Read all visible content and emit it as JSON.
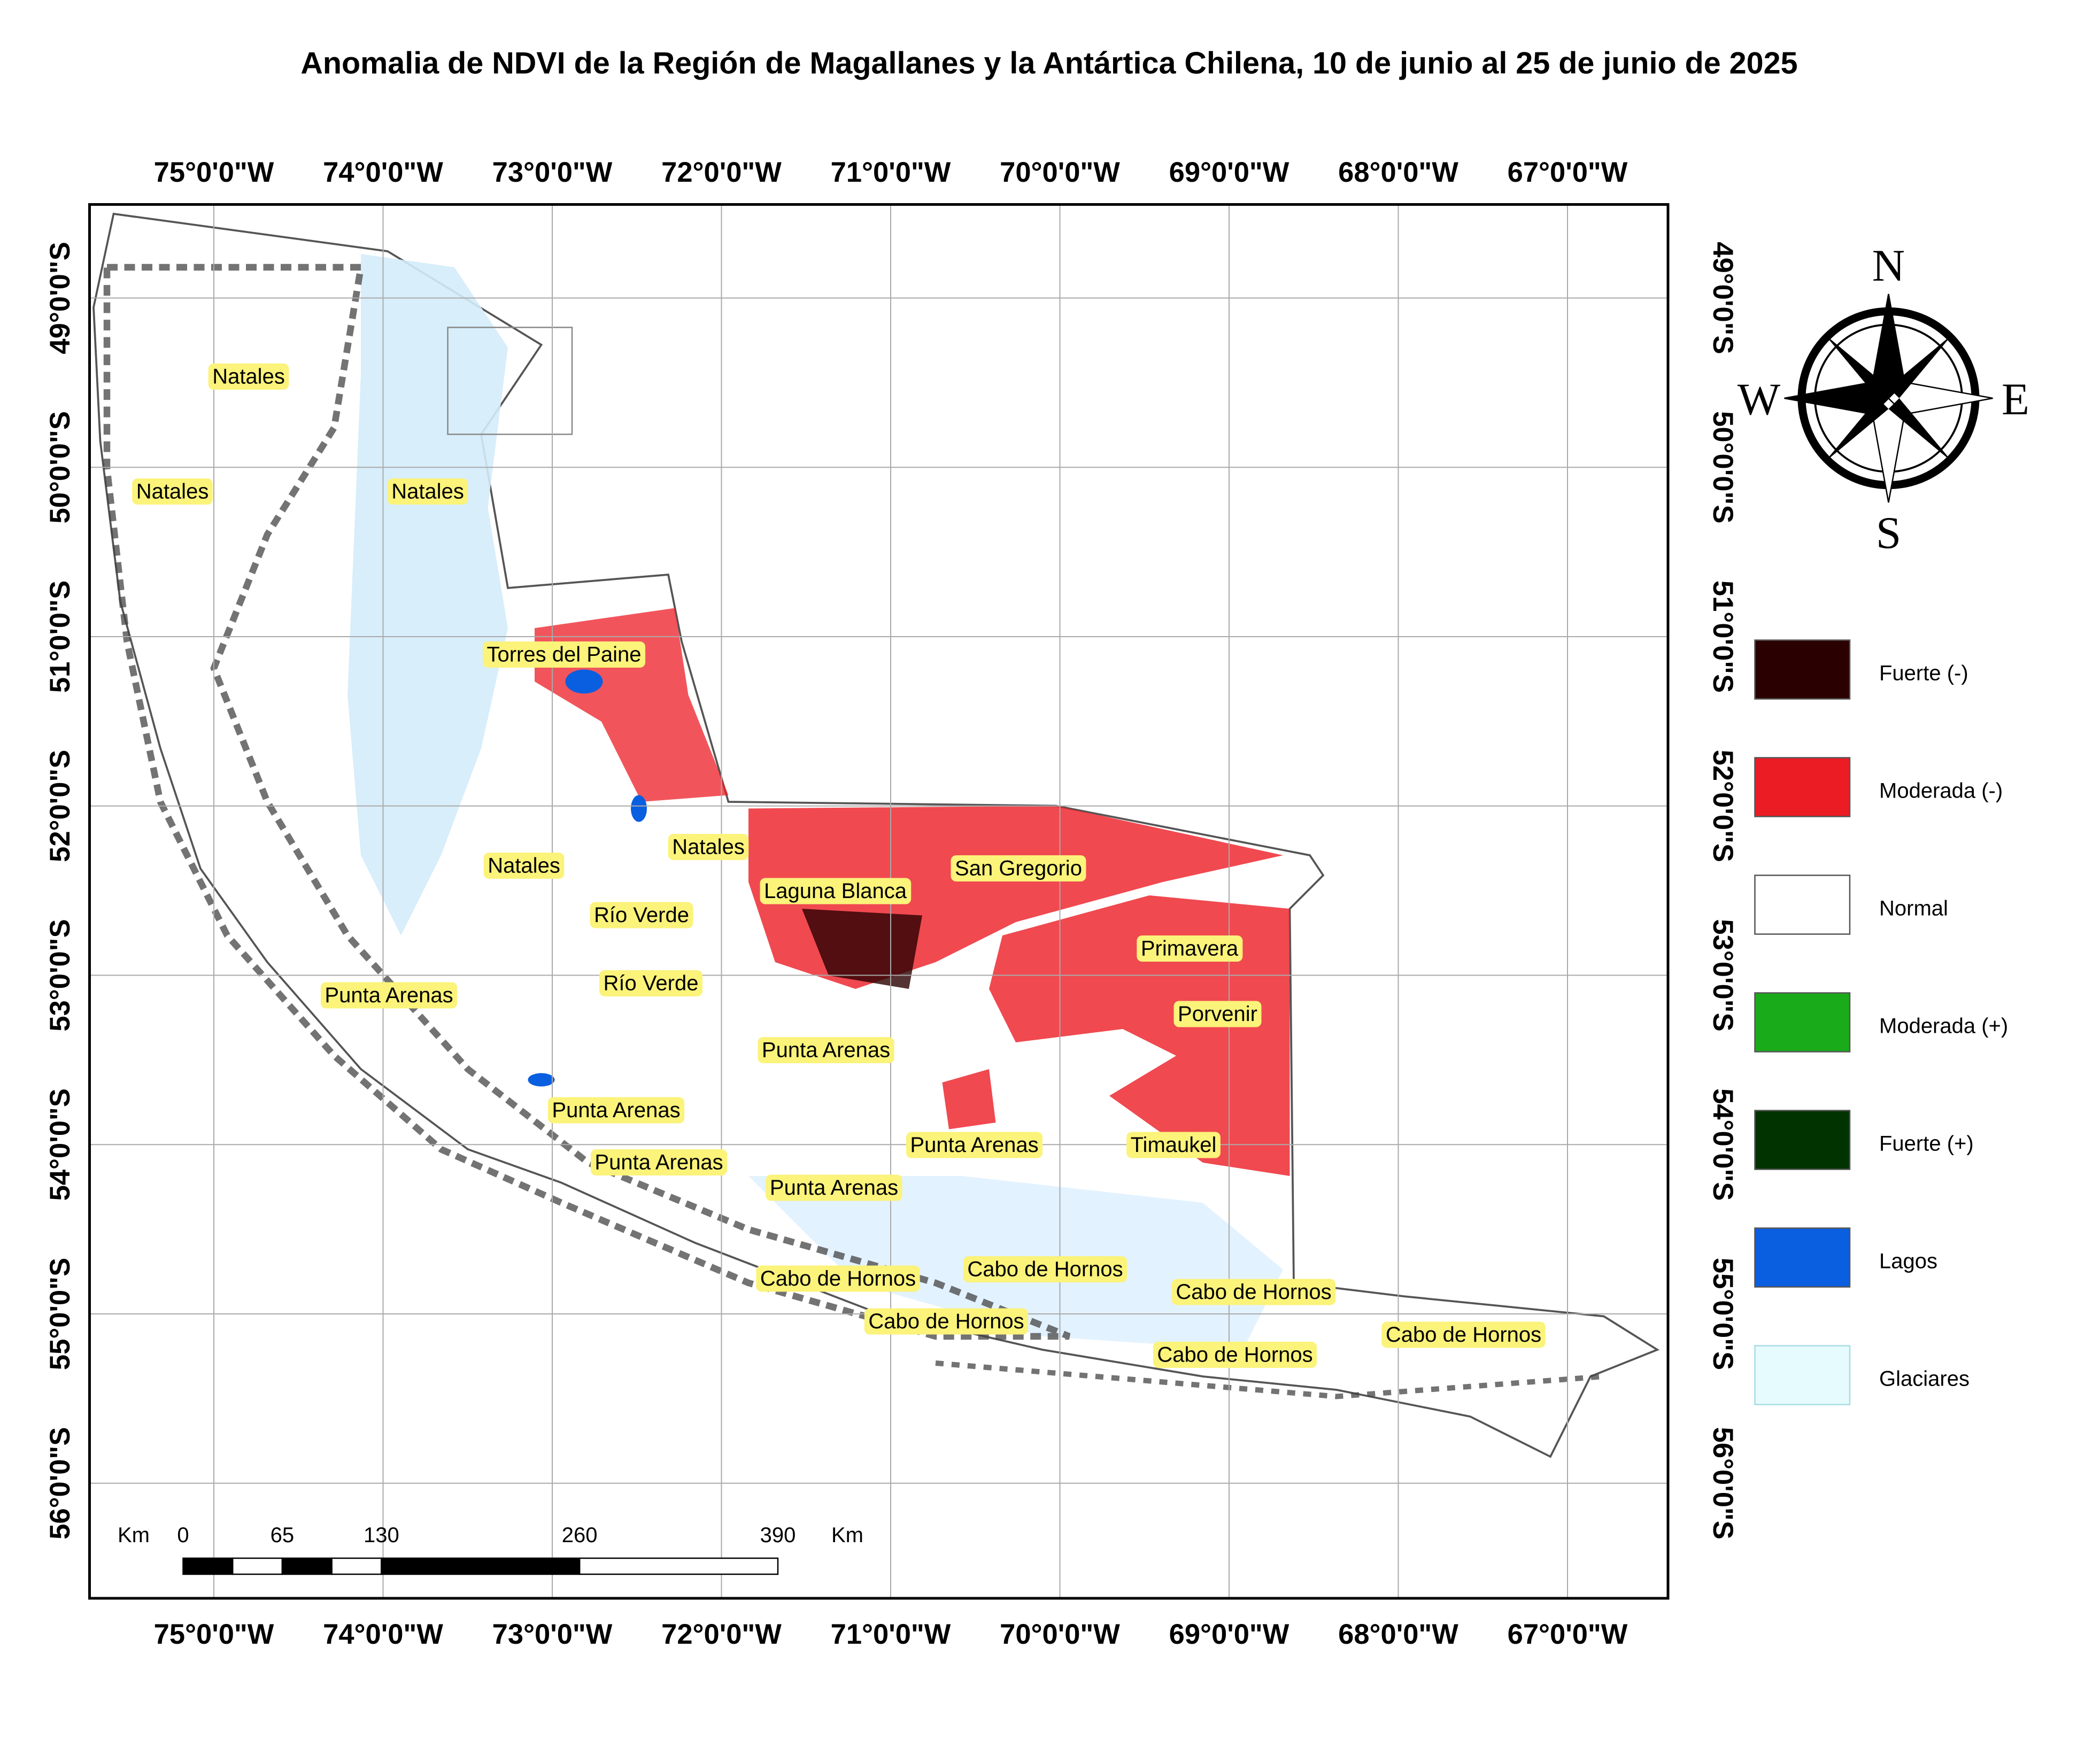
{
  "title": "Anomalia de NDVI de la Región de Magallanes y la Antártica Chilena, 10 de junio al 25 de junio de 2025",
  "longitude_labels": [
    "75°0'0\"W",
    "74°0'0\"W",
    "73°0'0\"W",
    "72°0'0\"W",
    "71°0'0\"W",
    "70°0'0\"W",
    "69°0'0\"W",
    "68°0'0\"W",
    "67°0'0\"W"
  ],
  "latitude_labels": [
    "49°0'0\"S",
    "50°0'0\"S",
    "51°0'0\"S",
    "52°0'0\"S",
    "53°0'0\"S",
    "54°0'0\"S",
    "55°0'0\"S",
    "56°0'0\"S"
  ],
  "compass": {
    "north": "N",
    "south": "S",
    "east": "E",
    "west": "W"
  },
  "scale_bar": {
    "unit": "Km",
    "labels": [
      0,
      65,
      130,
      260,
      390
    ]
  },
  "places": [
    "Natales",
    "Natales",
    "Natales",
    "Torres del Paine",
    "Natales",
    "Natales",
    "Laguna Blanca",
    "San Gregorio",
    "Río Verde",
    "Río Verde",
    "Primavera",
    "Punta Arenas",
    "Porvenir",
    "Punta Arenas",
    "Punta Arenas",
    "Punta Arenas",
    "Timaukel",
    "Punta Arenas",
    "Punta Arenas",
    "Cabo de Hornos",
    "Cabo de Hornos",
    "Cabo de Hornos",
    "Cabo de Hornos",
    "Cabo de Hornos",
    "Cabo de Hornos"
  ],
  "legend": [
    {
      "label": "Fuerte (-)",
      "color": "#2b0000"
    },
    {
      "label": "Moderada (-)",
      "color": "#ec1c24"
    },
    {
      "label": "Normal",
      "color": "#ffffff"
    },
    {
      "label": "Moderada (+)",
      "color": "#1aab1a"
    },
    {
      "label": "Fuerte (+)",
      "color": "#003300"
    },
    {
      "label": "Lagos",
      "color": "#0a5ee0"
    },
    {
      "label": "Glaciares",
      "color": "#e6fbfd"
    }
  ]
}
